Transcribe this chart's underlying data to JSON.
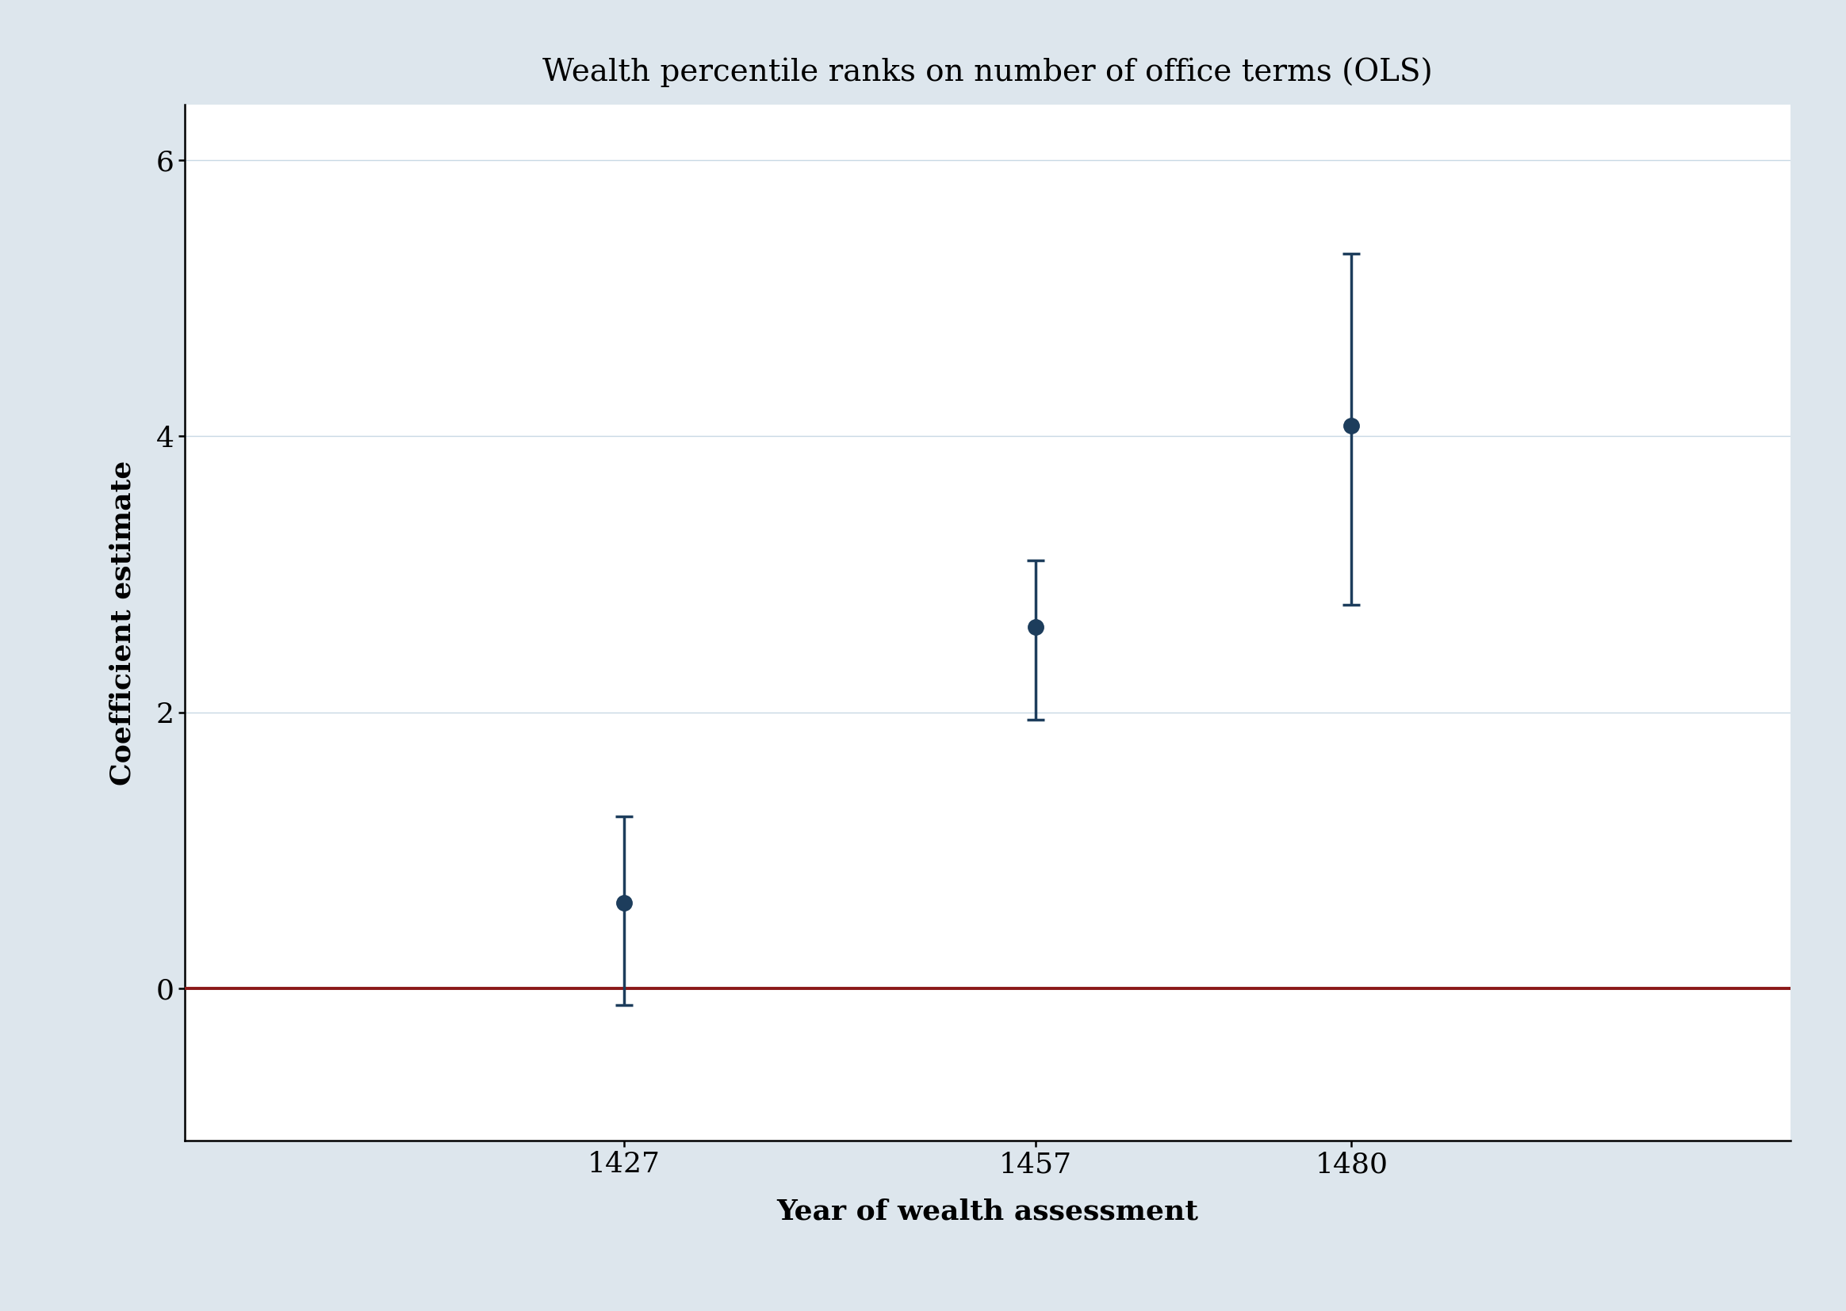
{
  "title": "Wealth percentile ranks on number of office terms (OLS)",
  "xlabel": "Year of wealth assessment",
  "ylabel": "Coefficient estimate",
  "x": [
    1427,
    1457,
    1480
  ],
  "y": [
    0.62,
    2.62,
    4.08
  ],
  "ci_lower": [
    -0.12,
    1.95,
    2.78
  ],
  "ci_upper": [
    1.25,
    3.1,
    5.32
  ],
  "dot_color": "#1d3d5c",
  "line_color": "#1d3d5c",
  "hline_color": "#8b1818",
  "background_color": "#dde6ed",
  "plot_background": "#ffffff",
  "grid_color": "#c8d8e4",
  "ylim": [
    -1.1,
    6.4
  ],
  "yticks": [
    0,
    2,
    4,
    6
  ],
  "xlim": [
    1395,
    1512
  ],
  "xticks": [
    1427,
    1457,
    1480
  ],
  "title_fontsize": 28,
  "label_fontsize": 26,
  "tick_fontsize": 26,
  "marker_size": 14,
  "capsize": 8,
  "elinewidth": 2.5,
  "capthick": 2.5,
  "hline_linewidth": 2.8
}
